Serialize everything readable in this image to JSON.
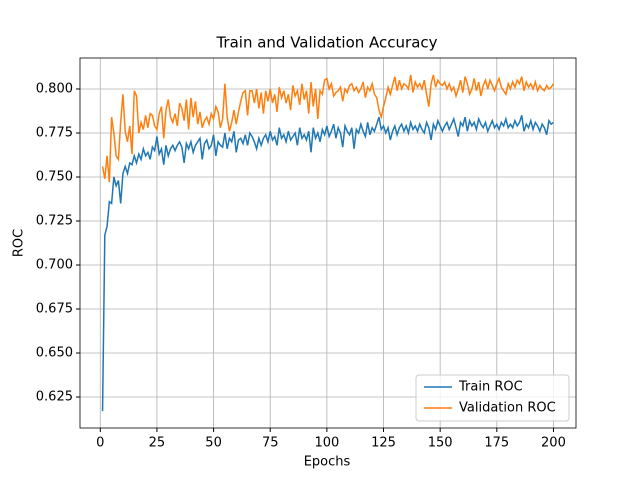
{
  "chart_data": {
    "type": "line",
    "title": "Train and Validation Accuracy",
    "xlabel": "Epochs",
    "ylabel": "ROC",
    "x": [
      1,
      2,
      3,
      4,
      5,
      6,
      7,
      8,
      9,
      10,
      11,
      12,
      13,
      14,
      15,
      16,
      17,
      18,
      19,
      20,
      21,
      22,
      23,
      24,
      25,
      26,
      27,
      28,
      29,
      30,
      31,
      32,
      33,
      34,
      35,
      36,
      37,
      38,
      39,
      40,
      41,
      42,
      43,
      44,
      45,
      46,
      47,
      48,
      49,
      50,
      51,
      52,
      53,
      54,
      55,
      56,
      57,
      58,
      59,
      60,
      61,
      62,
      63,
      64,
      65,
      66,
      67,
      68,
      69,
      70,
      71,
      72,
      73,
      74,
      75,
      76,
      77,
      78,
      79,
      80,
      81,
      82,
      83,
      84,
      85,
      86,
      87,
      88,
      89,
      90,
      91,
      92,
      93,
      94,
      95,
      96,
      97,
      98,
      99,
      100,
      101,
      102,
      103,
      104,
      105,
      106,
      107,
      108,
      109,
      110,
      111,
      112,
      113,
      114,
      115,
      116,
      117,
      118,
      119,
      120,
      121,
      122,
      123,
      124,
      125,
      126,
      127,
      128,
      129,
      130,
      131,
      132,
      133,
      134,
      135,
      136,
      137,
      138,
      139,
      140,
      141,
      142,
      143,
      144,
      145,
      146,
      147,
      148,
      149,
      150,
      151,
      152,
      153,
      154,
      155,
      156,
      157,
      158,
      159,
      160,
      161,
      162,
      163,
      164,
      165,
      166,
      167,
      168,
      169,
      170,
      171,
      172,
      173,
      174,
      175,
      176,
      177,
      178,
      179,
      180,
      181,
      182,
      183,
      184,
      185,
      186,
      187,
      188,
      189,
      190,
      191,
      192,
      193,
      194,
      195,
      196,
      197,
      198,
      199,
      200
    ],
    "series": [
      {
        "name": "Train ROC",
        "color": "#1f77b4",
        "values": [
          0.617,
          0.717,
          0.722,
          0.736,
          0.735,
          0.75,
          0.745,
          0.748,
          0.735,
          0.752,
          0.756,
          0.752,
          0.758,
          0.757,
          0.762,
          0.758,
          0.763,
          0.76,
          0.766,
          0.762,
          0.764,
          0.76,
          0.767,
          0.765,
          0.773,
          0.763,
          0.766,
          0.757,
          0.768,
          0.762,
          0.766,
          0.768,
          0.765,
          0.768,
          0.77,
          0.767,
          0.758,
          0.769,
          0.766,
          0.77,
          0.764,
          0.768,
          0.77,
          0.772,
          0.76,
          0.769,
          0.771,
          0.766,
          0.768,
          0.774,
          0.762,
          0.77,
          0.768,
          0.767,
          0.775,
          0.766,
          0.772,
          0.77,
          0.776,
          0.764,
          0.771,
          0.772,
          0.769,
          0.774,
          0.768,
          0.775,
          0.773,
          0.77,
          0.766,
          0.772,
          0.768,
          0.772,
          0.774,
          0.77,
          0.776,
          0.771,
          0.773,
          0.768,
          0.778,
          0.772,
          0.774,
          0.77,
          0.776,
          0.771,
          0.773,
          0.775,
          0.768,
          0.778,
          0.772,
          0.774,
          0.771,
          0.776,
          0.764,
          0.778,
          0.772,
          0.775,
          0.77,
          0.777,
          0.774,
          0.779,
          0.773,
          0.776,
          0.78,
          0.772,
          0.778,
          0.775,
          0.767,
          0.779,
          0.776,
          0.774,
          0.778,
          0.766,
          0.777,
          0.775,
          0.78,
          0.776,
          0.773,
          0.781,
          0.774,
          0.778,
          0.776,
          0.78,
          0.784,
          0.777,
          0.779,
          0.775,
          0.778,
          0.771,
          0.776,
          0.779,
          0.774,
          0.778,
          0.78,
          0.776,
          0.779,
          0.775,
          0.781,
          0.777,
          0.779,
          0.776,
          0.78,
          0.777,
          0.775,
          0.781,
          0.778,
          0.771,
          0.78,
          0.777,
          0.782,
          0.779,
          0.776,
          0.779,
          0.781,
          0.777,
          0.78,
          0.783,
          0.778,
          0.773,
          0.781,
          0.779,
          0.784,
          0.776,
          0.782,
          0.779,
          0.781,
          0.777,
          0.783,
          0.78,
          0.778,
          0.781,
          0.776,
          0.779,
          0.782,
          0.778,
          0.78,
          0.777,
          0.781,
          0.779,
          0.783,
          0.778,
          0.78,
          0.778,
          0.782,
          0.779,
          0.781,
          0.785,
          0.776,
          0.78,
          0.778,
          0.782,
          0.777,
          0.781,
          0.779,
          0.776,
          0.78,
          0.778,
          0.774,
          0.782,
          0.78,
          0.781
        ]
      },
      {
        "name": "Validation ROC",
        "color": "#ff7f0e",
        "values": [
          0.756,
          0.749,
          0.762,
          0.747,
          0.784,
          0.775,
          0.762,
          0.76,
          0.781,
          0.797,
          0.776,
          0.77,
          0.779,
          0.763,
          0.799,
          0.796,
          0.775,
          0.781,
          0.777,
          0.785,
          0.778,
          0.786,
          0.785,
          0.779,
          0.777,
          0.786,
          0.79,
          0.772,
          0.788,
          0.794,
          0.784,
          0.781,
          0.786,
          0.779,
          0.792,
          0.789,
          0.782,
          0.794,
          0.777,
          0.795,
          0.784,
          0.793,
          0.78,
          0.787,
          0.778,
          0.782,
          0.784,
          0.78,
          0.786,
          0.783,
          0.79,
          0.787,
          0.778,
          0.783,
          0.803,
          0.784,
          0.776,
          0.781,
          0.788,
          0.78,
          0.787,
          0.793,
          0.798,
          0.799,
          0.785,
          0.799,
          0.799,
          0.792,
          0.8,
          0.789,
          0.798,
          0.786,
          0.799,
          0.793,
          0.8,
          0.792,
          0.797,
          0.787,
          0.801,
          0.795,
          0.799,
          0.792,
          0.797,
          0.788,
          0.802,
          0.796,
          0.799,
          0.791,
          0.803,
          0.794,
          0.799,
          0.786,
          0.804,
          0.79,
          0.8,
          0.783,
          0.799,
          0.797,
          0.805,
          0.806,
          0.8,
          0.803,
          0.796,
          0.798,
          0.799,
          0.801,
          0.793,
          0.8,
          0.798,
          0.802,
          0.803,
          0.799,
          0.801,
          0.798,
          0.8,
          0.804,
          0.795,
          0.801,
          0.799,
          0.803,
          0.797,
          0.795,
          0.788,
          0.784,
          0.79,
          0.795,
          0.801,
          0.797,
          0.802,
          0.807,
          0.799,
          0.805,
          0.8,
          0.803,
          0.802,
          0.8,
          0.808,
          0.798,
          0.804,
          0.801,
          0.803,
          0.8,
          0.805,
          0.797,
          0.79,
          0.803,
          0.808,
          0.801,
          0.805,
          0.803,
          0.802,
          0.804,
          0.8,
          0.803,
          0.799,
          0.801,
          0.796,
          0.8,
          0.805,
          0.798,
          0.807,
          0.803,
          0.797,
          0.8,
          0.806,
          0.799,
          0.804,
          0.796,
          0.802,
          0.805,
          0.8,
          0.805,
          0.802,
          0.799,
          0.803,
          0.806,
          0.801,
          0.799,
          0.797,
          0.803,
          0.8,
          0.804,
          0.801,
          0.805,
          0.803,
          0.807,
          0.799,
          0.804,
          0.801,
          0.803,
          0.8,
          0.804,
          0.799,
          0.802,
          0.8,
          0.799,
          0.802,
          0.8,
          0.801,
          0.803
        ]
      }
    ],
    "xlim": [
      -8.95,
      209.95
    ],
    "xticks": [
      0,
      25,
      50,
      75,
      100,
      125,
      150,
      175,
      200
    ],
    "ylim": [
      0.6074,
      0.8176
    ],
    "yticks": [
      0.625,
      {
        "value": 0.65,
        "label": "0.650"
      },
      0.675,
      {
        "value": 0.7,
        "label": "0.700"
      },
      0.725,
      {
        "value": 0.75,
        "label": "0.750"
      },
      0.775,
      {
        "value": 0.8,
        "label": "0.800"
      }
    ],
    "grid": true,
    "legend": "lower right"
  }
}
